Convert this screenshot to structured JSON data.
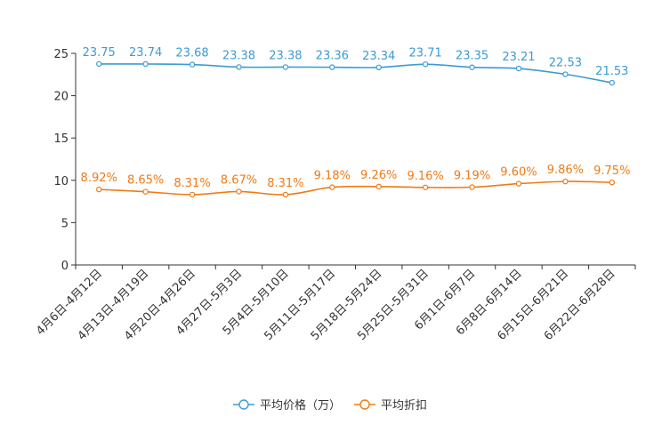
{
  "chart_data": {
    "type": "line",
    "title": "",
    "xlabel": "",
    "ylabel": "",
    "ylim": [
      0,
      25
    ],
    "yticks": [
      "0",
      "5",
      "10",
      "15",
      "20",
      "25"
    ],
    "grid": false,
    "legend_position": "bottom-center",
    "categories": [
      "4月6日-4月12日",
      "4月13日-4月19日",
      "4月20日-4月26日",
      "4月27日-5月3日",
      "5月4日-5月10日",
      "5月11日-5月17日",
      "5月18日-5月24日",
      "5月25日-5月31日",
      "6月1日-6月7日",
      "6月8日-6月14日",
      "6月15日-6月21日",
      "6月22日-6月28日"
    ],
    "series": [
      {
        "name": "平均价格（万）",
        "color": "#3a9bd4",
        "values": [
          23.75,
          23.74,
          23.68,
          23.38,
          23.38,
          23.36,
          23.34,
          23.71,
          23.35,
          23.21,
          22.53,
          21.53
        ],
        "labels": [
          "23.75",
          "23.74",
          "23.68",
          "23.38",
          "23.38",
          "23.36",
          "23.34",
          "23.71",
          "23.35",
          "23.21",
          "22.53",
          "21.53"
        ]
      },
      {
        "name": "平均折扣",
        "color": "#f07a16",
        "values": [
          8.92,
          8.65,
          8.31,
          8.67,
          8.31,
          9.18,
          9.26,
          9.16,
          9.19,
          9.6,
          9.86,
          9.75
        ],
        "labels": [
          "8.92%",
          "8.65%",
          "8.31%",
          "8.67%",
          "8.31%",
          "9.18%",
          "9.26%",
          "9.16%",
          "9.19%",
          "9.60%",
          "9.86%",
          "9.75%"
        ]
      }
    ]
  }
}
